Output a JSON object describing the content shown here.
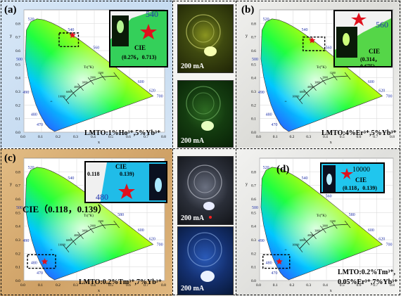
{
  "panels": {
    "a": {
      "label": "(a)",
      "caption": "LMTO:1%Ho³⁺,5%Yb³⁺",
      "cie_title": "CIE",
      "cie_value": "(0.276，0.713)",
      "inset_label": "540",
      "inset_color": "#3ee85a"
    },
    "b": {
      "label": "(b)",
      "caption": "LMTO:4%Er³⁺,5%Yb³⁺",
      "cie_title": "CIE",
      "cie_value": "(0.314，0.675)",
      "inset_label": "560",
      "inset_color": "#5aea3a"
    },
    "c": {
      "label": "(c)",
      "caption": "LMTO:0.2%Tm³⁺,7%Yb³⁺",
      "cie_big": "CIE（0.118，0.139）",
      "cie_small_title": "CIE",
      "cie_small_x": "0.118",
      "cie_small_y": "0.139)",
      "inset_label": "480",
      "inset_color": "#27c6ea"
    },
    "d": {
      "label": "(d)",
      "caption_line1": "LMTO:0.2%Tm³⁺,",
      "caption_line2": "0.05%Er³⁺,7%Yb³⁺",
      "cie_value_top": "10000",
      "cie_value": "(0.118，0.139)",
      "cie_title": "CIE",
      "inset_color": "#2ad4f0"
    }
  },
  "photos": {
    "p1": {
      "current": "200 mA"
    },
    "p2": {
      "current": "200 mA"
    },
    "p3": {
      "current": "200 mA"
    },
    "p4": {
      "current": "200 mA"
    }
  },
  "axis": {
    "x_label": "x",
    "y_label": "y",
    "x_ticks": [
      "0.0",
      "0.1",
      "0.2",
      "0.3",
      "0.4",
      "0.5",
      "0.6",
      "0.7",
      "0.8"
    ],
    "y_ticks": [
      "0.0",
      "0.1",
      "0.2",
      "0.3",
      "0.4",
      "0.5",
      "0.6",
      "0.7",
      "0.8"
    ],
    "wavelengths": [
      "470",
      "480",
      "490",
      "500",
      "520",
      "540",
      "560",
      "580",
      "600",
      "620",
      "700"
    ],
    "cct_label": "Tc(°K)",
    "cct_values": [
      "1500",
      "2000",
      "3000",
      "4000",
      "6000",
      "10000",
      "∞"
    ]
  },
  "colors": {
    "background_blue": "#cfe2f4",
    "background_tan": "#d7b07a",
    "background_grey": "#ededea",
    "star": "#e0101c",
    "inset_frame": "#000000"
  }
}
